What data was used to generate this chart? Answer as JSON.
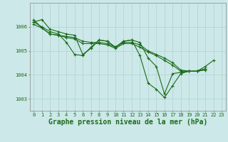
{
  "title": "Graphe pression niveau de la mer (hPa)",
  "background_color": "#cce8e8",
  "plot_bg_color": "#cce8e8",
  "grid_color": "#aacccc",
  "line_color": "#1a6b1a",
  "marker_color": "#1a6b1a",
  "ylim": [
    1002.5,
    1007.0
  ],
  "yticks": [
    1003,
    1004,
    1005,
    1006
  ],
  "xlim": [
    -0.5,
    23.5
  ],
  "xticks": [
    0,
    1,
    2,
    3,
    4,
    5,
    6,
    7,
    8,
    9,
    10,
    11,
    12,
    13,
    14,
    15,
    16,
    17,
    18,
    19,
    20,
    21,
    22,
    23
  ],
  "series": [
    [
      1006.2,
      1006.3,
      1005.9,
      1005.8,
      1005.7,
      1005.65,
      1004.85,
      1005.1,
      1005.45,
      1005.4,
      1005.15,
      1005.4,
      1005.45,
      1005.35,
      1004.7,
      1004.35,
      1003.2,
      1004.05,
      1004.1,
      1004.15,
      1004.15,
      1004.25,
      null,
      null
    ],
    [
      1006.3,
      1005.95,
      1005.7,
      1005.65,
      1005.55,
      1005.5,
      1005.3,
      1005.3,
      1005.3,
      1005.25,
      1005.1,
      1005.3,
      1005.3,
      1005.15,
      1004.95,
      1004.8,
      1004.6,
      1004.4,
      1004.15,
      1004.15,
      1004.15,
      1004.2,
      null,
      null
    ],
    [
      1006.1,
      1005.95,
      1005.7,
      1005.65,
      1005.6,
      1005.55,
      1005.4,
      1005.35,
      1005.35,
      1005.3,
      1005.15,
      1005.35,
      1005.35,
      1005.25,
      1005.0,
      1004.85,
      1004.7,
      1004.5,
      1004.2,
      1004.15,
      1004.15,
      1004.25,
      null,
      null
    ],
    [
      1006.2,
      1006.0,
      1005.8,
      1005.7,
      1005.35,
      1004.85,
      1004.8,
      1005.15,
      1005.45,
      1005.4,
      1005.15,
      1005.4,
      1005.45,
      1004.8,
      1003.65,
      1003.4,
      1003.05,
      1003.55,
      1004.05,
      1004.15,
      1004.15,
      1004.35,
      1004.6,
      null
    ]
  ],
  "tick_fontsize": 5,
  "tick_color": "#1a6b1a",
  "axis_color": "#888888",
  "label_fontsize": 7,
  "linewidth": 0.8,
  "markersize": 3.0,
  "markeredgewidth": 0.8
}
